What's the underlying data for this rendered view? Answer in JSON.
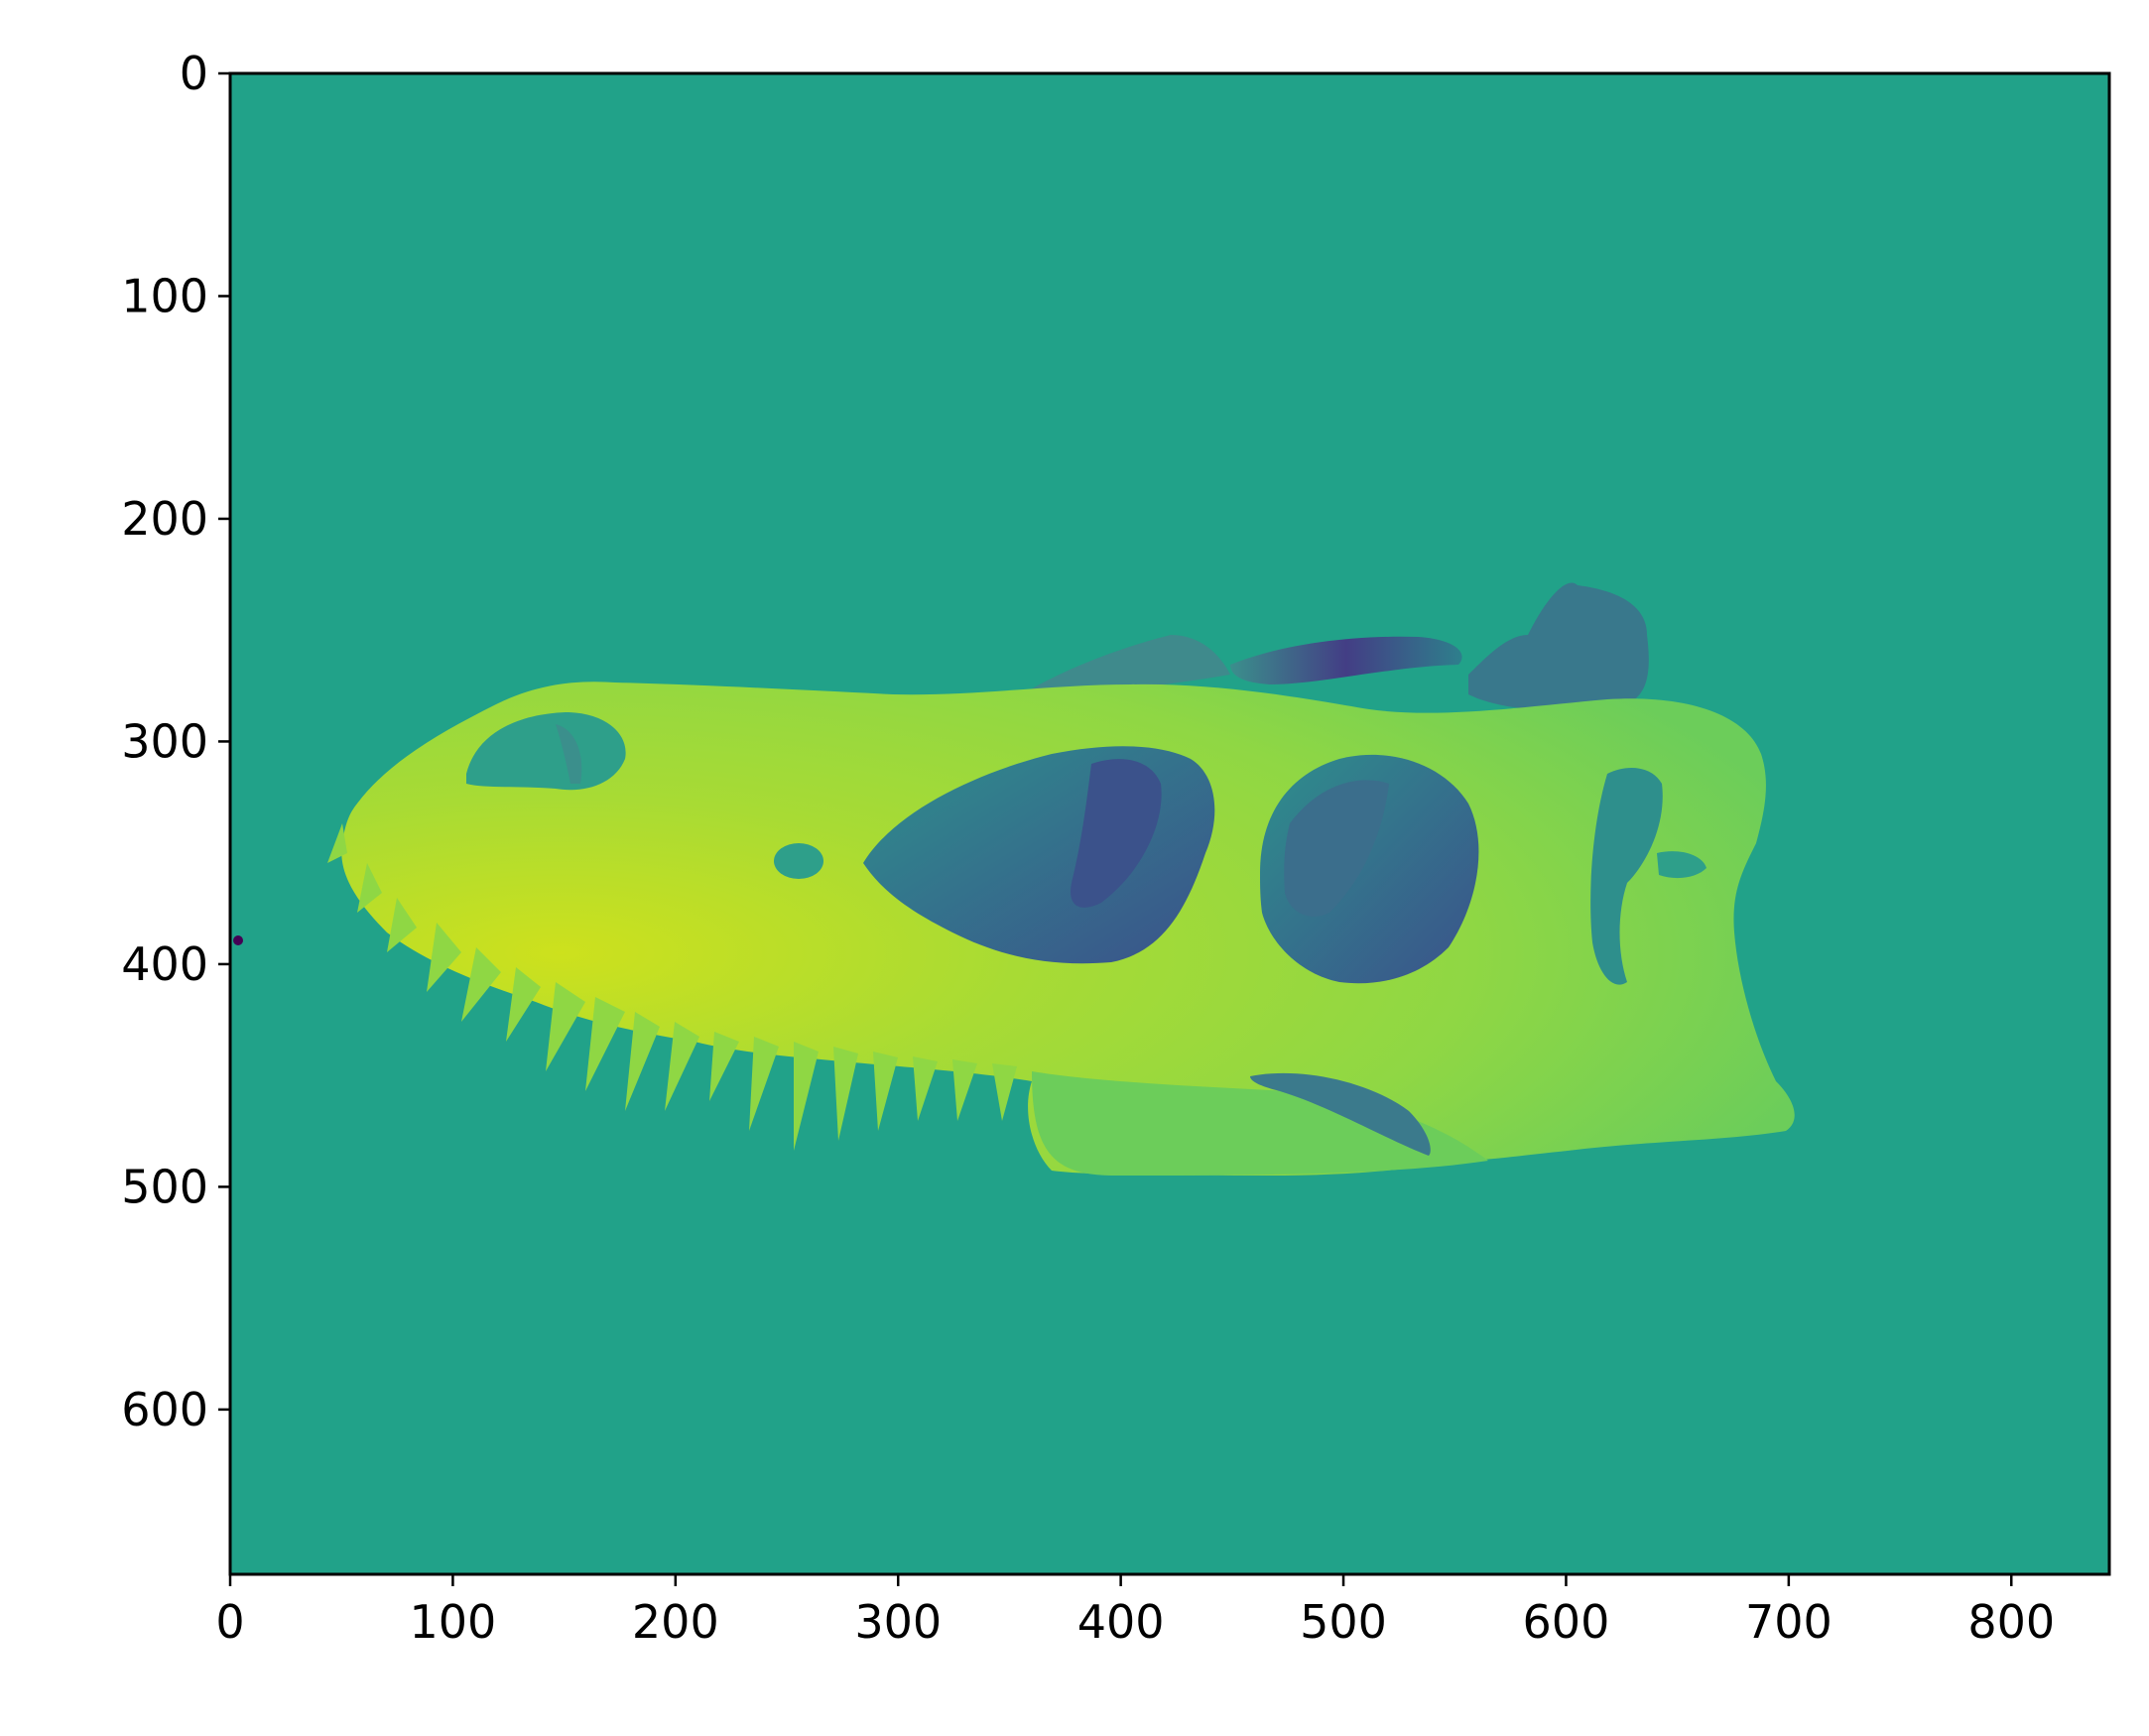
{
  "chart_data": {
    "type": "heatmap",
    "title": "",
    "xlabel": "",
    "ylabel": "",
    "colormap": "viridis",
    "background_color": "#21a289",
    "xlim": [
      0,
      844
    ],
    "ylim": [
      674,
      0
    ],
    "x_ticks": [
      0,
      100,
      200,
      300,
      400,
      500,
      600,
      700,
      800
    ],
    "y_ticks": [
      0,
      100,
      200,
      300,
      400,
      500,
      600
    ],
    "x_tick_labels": [
      "0",
      "100",
      "200",
      "300",
      "400",
      "500",
      "600",
      "700",
      "800"
    ],
    "y_tick_labels": [
      "0",
      "100",
      "200",
      "300",
      "400",
      "500",
      "600"
    ],
    "image_content": "depth map of a dinosaur skull in side view",
    "colors": {
      "skull_bright": "#cde11d",
      "skull_mid": "#8fd744",
      "skull_light": "#5ec962",
      "cavity_mid": "#2e8f8c",
      "cavity_dark": "#3b528b",
      "cavity_darkest": "#433e85",
      "outlier_point": "#440154"
    }
  }
}
